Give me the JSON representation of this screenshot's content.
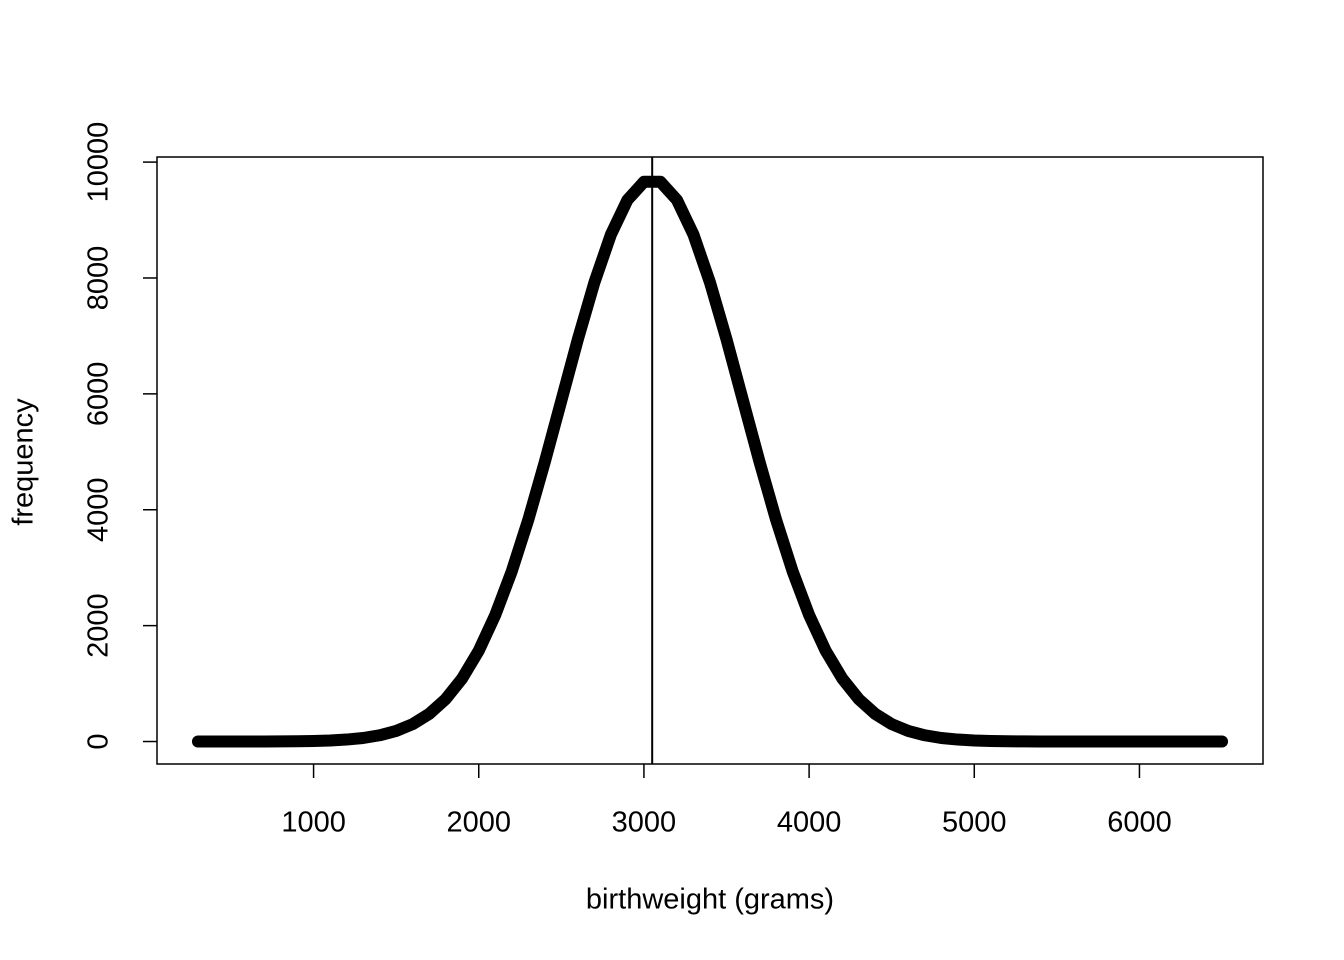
{
  "chart_data": {
    "type": "line",
    "x_label": "birthweight (grams)",
    "y_label": "frequency",
    "x": [
      300,
      400,
      500,
      600,
      700,
      800,
      900,
      1000,
      1100,
      1200,
      1300,
      1400,
      1500,
      1600,
      1700,
      1800,
      1900,
      2000,
      2100,
      2200,
      2300,
      2400,
      2500,
      2600,
      2700,
      2800,
      2900,
      3000,
      3100,
      3200,
      3300,
      3400,
      3500,
      3600,
      3700,
      3800,
      3900,
      4000,
      4100,
      4200,
      4300,
      4400,
      4500,
      4600,
      4700,
      4800,
      4900,
      5000,
      5100,
      5200,
      5300,
      5400,
      5500,
      5600,
      5700,
      5800,
      5900,
      6000,
      6100,
      6200,
      6300,
      6400,
      6500
    ],
    "values": [
      0,
      0,
      0,
      0,
      1,
      2,
      5,
      9,
      18,
      34,
      61,
      108,
      183,
      300,
      477,
      733,
      1090,
      1568,
      2183,
      2939,
      3828,
      4826,
      5883,
      6941,
      7922,
      8748,
      9346,
      9660,
      9660,
      9346,
      8748,
      7922,
      6941,
      5883,
      4826,
      3828,
      2939,
      2183,
      1568,
      1090,
      733,
      477,
      300,
      183,
      108,
      61,
      34,
      18,
      9,
      5,
      2,
      1,
      0,
      0,
      0,
      0,
      0,
      0,
      0,
      0,
      0,
      0,
      0
    ],
    "color": "#000000",
    "vline": 3050,
    "xlim": [
      52,
      6748
    ],
    "ylim": [
      -388,
      10088
    ],
    "xticks": [
      1000,
      2000,
      3000,
      4000,
      5000,
      6000
    ],
    "yticks": [
      0,
      2000,
      4000,
      6000,
      8000,
      10000
    ]
  }
}
